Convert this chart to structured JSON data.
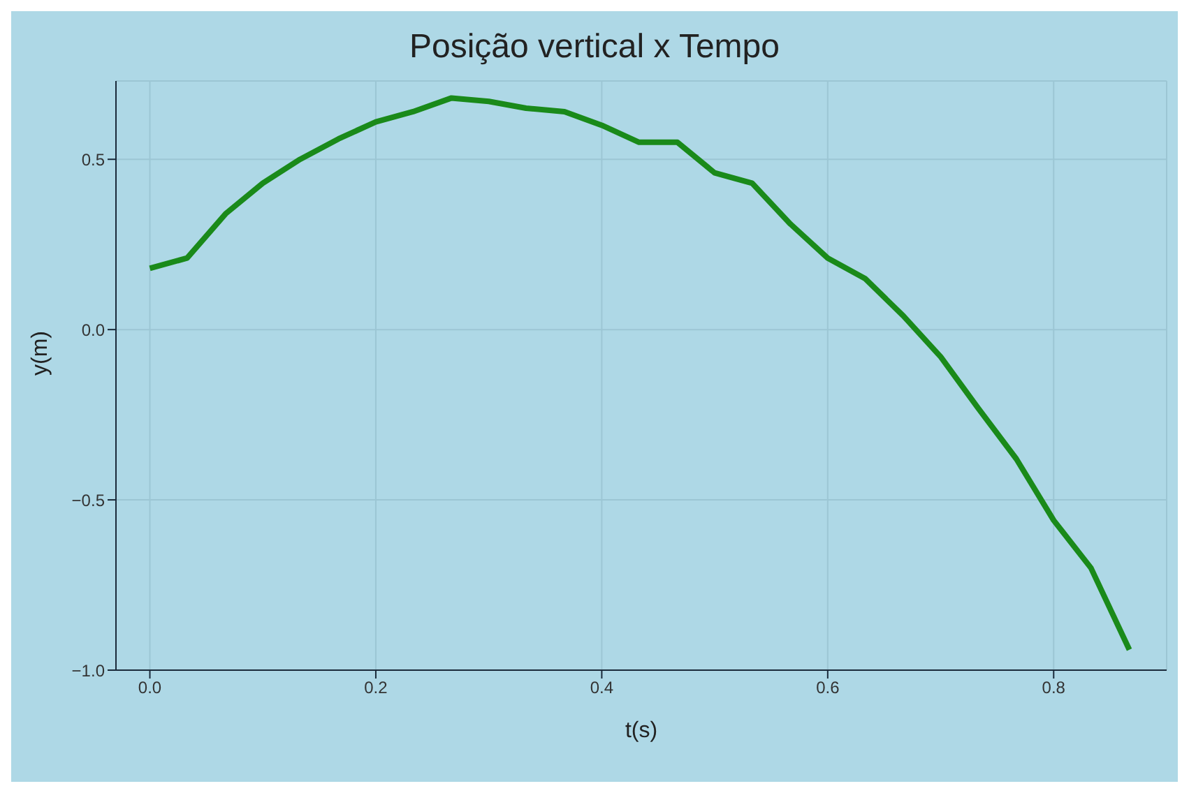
{
  "chart_data": {
    "type": "line",
    "title": "Posição vertical x Tempo",
    "xlabel": "t(s)",
    "ylabel": "y(m)",
    "x": [
      0,
      0.033,
      0.067,
      0.1,
      0.133,
      0.167,
      0.2,
      0.233,
      0.267,
      0.3,
      0.333,
      0.367,
      0.4,
      0.433,
      0.467,
      0.5,
      0.533,
      0.567,
      0.6,
      0.633,
      0.667,
      0.7,
      0.733,
      0.767,
      0.8,
      0.833,
      0.867
    ],
    "series": [
      {
        "color": "#1a8a1a",
        "values": [
          0.18,
          0.21,
          0.34,
          0.43,
          0.5,
          0.56,
          0.61,
          0.64,
          0.68,
          0.67,
          0.65,
          0.64,
          0.6,
          0.55,
          0.55,
          0.46,
          0.43,
          0.31,
          0.21,
          0.15,
          0.04,
          -0.08,
          -0.23,
          -0.38,
          -0.56,
          -0.7,
          -0.94
        ]
      }
    ],
    "xlim": [
      -0.03,
      0.9
    ],
    "xticks": [
      {
        "value": 0,
        "label": "0.0"
      },
      0.2,
      0.4,
      0.6,
      0.8
    ],
    "ylim": [
      -1,
      0.73
    ],
    "yticks": [
      {
        "value": -1,
        "label": "−1.0"
      },
      {
        "value": -0.5,
        "label": "−0.5"
      },
      {
        "value": 0,
        "label": "0.0"
      },
      0.5
    ],
    "grid": true,
    "legend": false,
    "marker": "none",
    "line_style": "solid"
  }
}
